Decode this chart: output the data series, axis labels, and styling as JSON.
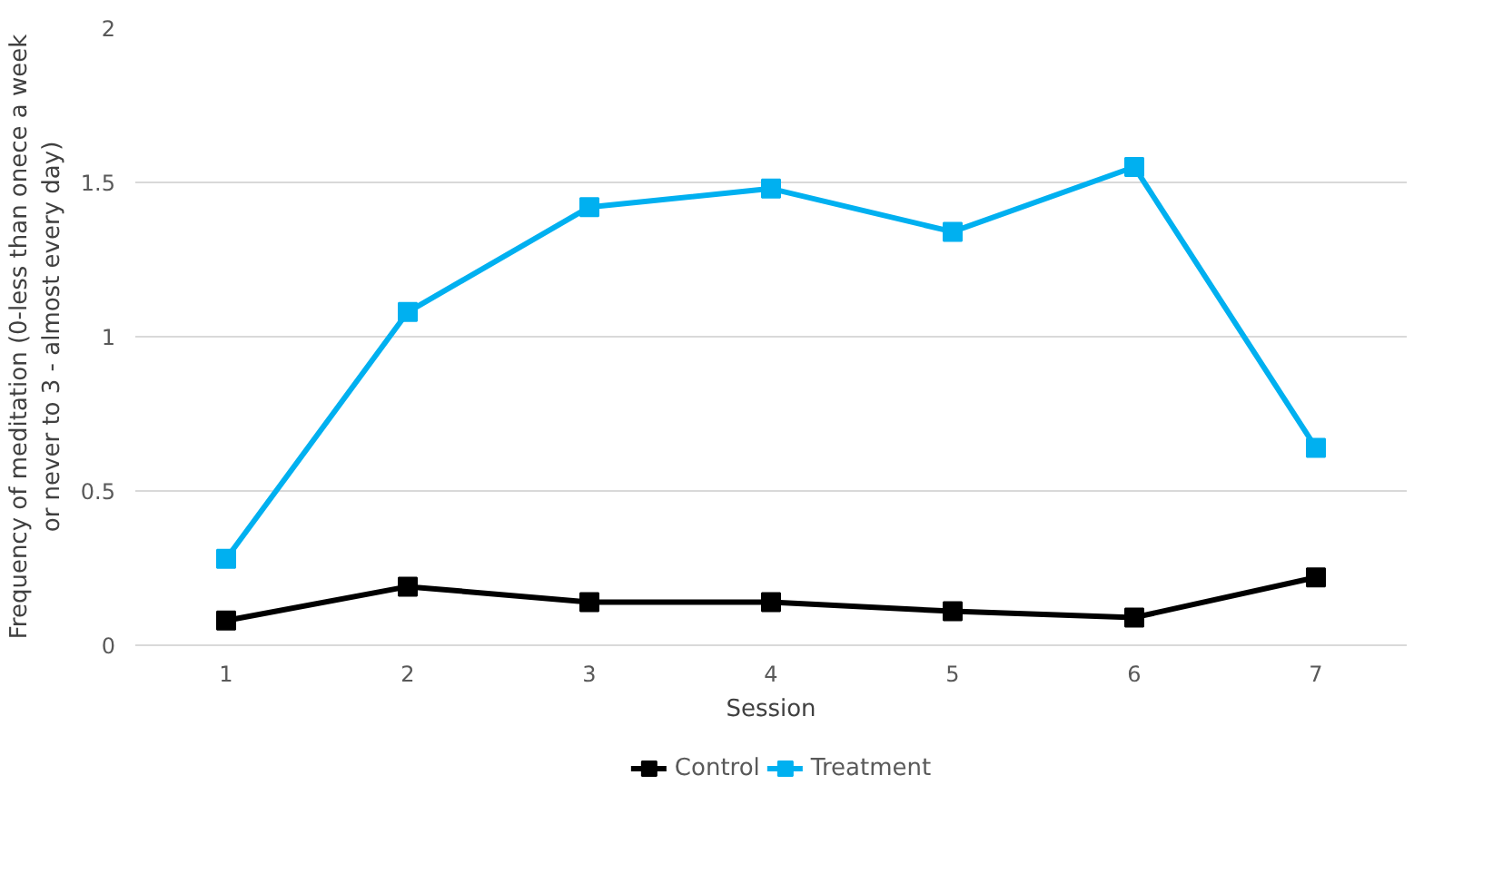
{
  "chart_data": {
    "type": "line",
    "xlabel": "Session",
    "ylabel": "Frequency of meditation (0-less than onece a week\nor never to 3 - almost every day)",
    "categories": [
      "1",
      "2",
      "3",
      "4",
      "5",
      "6",
      "7"
    ],
    "series": [
      {
        "name": "Control",
        "color": "#000000",
        "values": [
          0.08,
          0.19,
          0.14,
          0.14,
          0.11,
          0.09,
          0.22
        ]
      },
      {
        "name": "Treatment",
        "color": "#00b0f0",
        "values": [
          0.28,
          1.08,
          1.42,
          1.48,
          1.34,
          1.55,
          0.64
        ]
      }
    ],
    "ylim": [
      0,
      2
    ],
    "yticks": [
      0,
      0.5,
      1,
      1.5,
      2
    ],
    "grid": "y",
    "legend": "bottom",
    "marker": "square",
    "line_style": "solid"
  }
}
